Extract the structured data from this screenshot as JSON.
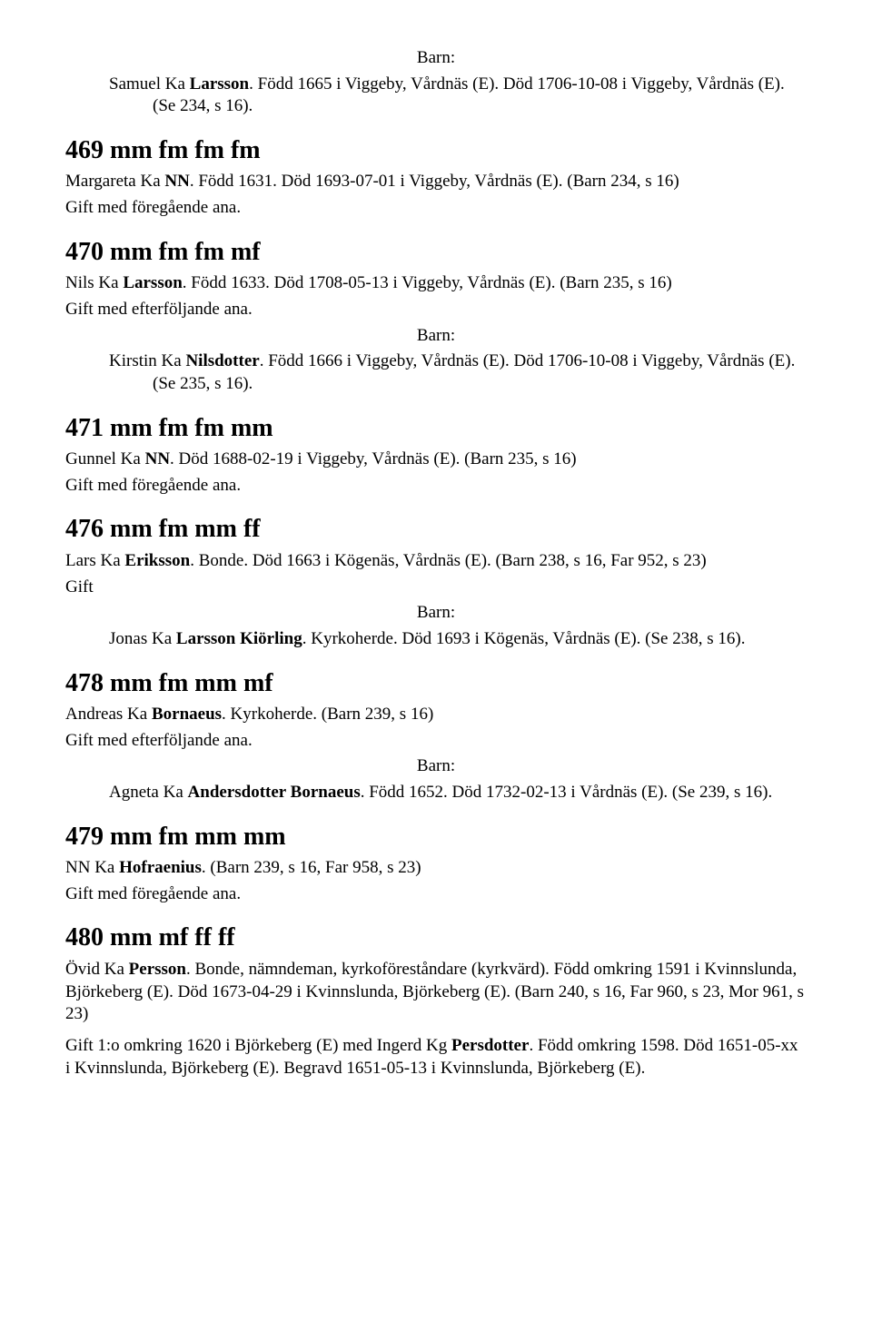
{
  "labels": {
    "barn": "Barn:",
    "gift_foregaende": "Gift med föregående ana.",
    "gift_efterfoljande": "Gift med efterföljande ana.",
    "gift": "Gift"
  },
  "entries": [
    {
      "barn_before": true,
      "children": [
        {
          "text_before": "Samuel Ka ",
          "bold": "Larsson",
          "text_after": ". Född 1665 i Viggeby, Vårdnäs (E). Död 1706-10-08 i Viggeby, Vårdnäs (E). (Se 234, s 16)."
        }
      ]
    }
  ],
  "sections": [
    {
      "heading": "469 mm fm fm fm",
      "person": {
        "text_before": "Margareta Ka ",
        "bold": "NN",
        "text_after": ". Född 1631. Död 1693-07-01 i Viggeby, Vårdnäs (E). (Barn 234, s 16)"
      },
      "gift": "gift_foregaende"
    },
    {
      "heading": "470 mm fm fm mf",
      "person": {
        "text_before": "Nils Ka ",
        "bold": "Larsson",
        "text_after": ". Född 1633. Död 1708-05-13 i Viggeby, Vårdnäs (E). (Barn 235, s 16)"
      },
      "gift": "gift_efterfoljande",
      "barn_after": true,
      "children": [
        {
          "text_before": "Kirstin Ka ",
          "bold": "Nilsdotter",
          "text_after": ". Född 1666 i Viggeby, Vårdnäs (E). Död 1706-10-08 i Viggeby, Vårdnäs (E). (Se 235, s 16)."
        }
      ]
    },
    {
      "heading": "471 mm fm fm mm",
      "person": {
        "text_before": "Gunnel Ka ",
        "bold": "NN",
        "text_after": ". Död 1688-02-19 i Viggeby, Vårdnäs (E). (Barn 235, s 16)"
      },
      "gift": "gift_foregaende"
    },
    {
      "heading": "476 mm fm mm ff",
      "person": {
        "text_before": "Lars Ka ",
        "bold": "Eriksson",
        "text_after": ". Bonde. Död 1663 i Kögenäs, Vårdnäs (E). (Barn 238, s 16, Far 952, s 23)"
      },
      "gift": "gift",
      "barn_after": true,
      "children": [
        {
          "text_before": "Jonas Ka ",
          "bold": "Larsson Kiörling",
          "text_after": ". Kyrkoherde. Död 1693 i Kögenäs, Vårdnäs (E). (Se 238, s 16)."
        }
      ]
    },
    {
      "heading": "478 mm fm mm mf",
      "person": {
        "text_before": "Andreas Ka ",
        "bold": "Bornaeus",
        "text_after": ". Kyrkoherde. (Barn 239, s 16)"
      },
      "gift": "gift_efterfoljande",
      "barn_after": true,
      "children": [
        {
          "text_before": "Agneta Ka ",
          "bold": "Andersdotter Bornaeus",
          "text_after": ". Född 1652. Död 1732-02-13 i Vårdnäs (E). (Se 239, s 16)."
        }
      ]
    },
    {
      "heading": "479 mm fm mm mm",
      "person": {
        "text_before": "NN Ka ",
        "bold": "Hofraenius",
        "text_after": ". (Barn 239, s 16, Far 958, s 23)"
      },
      "gift": "gift_foregaende"
    },
    {
      "heading": "480 mm mf ff ff",
      "person": {
        "text_before": "Övid Ka ",
        "bold": "Persson",
        "text_after": ". Bonde, nämndeman, kyrkoföreståndare (kyrkvärd). Född omkring 1591 i Kvinnslunda, Björkeberg (E). Död 1673-04-29 i Kvinnslunda, Björkeberg (E). (Barn 240, s 16, Far 960, s 23, Mor 961, s 23)"
      },
      "extra_para": {
        "text_before": "Gift 1:o omkring 1620 i Björkeberg (E) med Ingerd Kg ",
        "bold": "Persdotter",
        "text_after": ". Född omkring 1598. Död 1651-05-xx i Kvinnslunda, Björkeberg (E). Begravd 1651-05-13 i Kvinnslunda, Björkeberg (E)."
      }
    }
  ]
}
